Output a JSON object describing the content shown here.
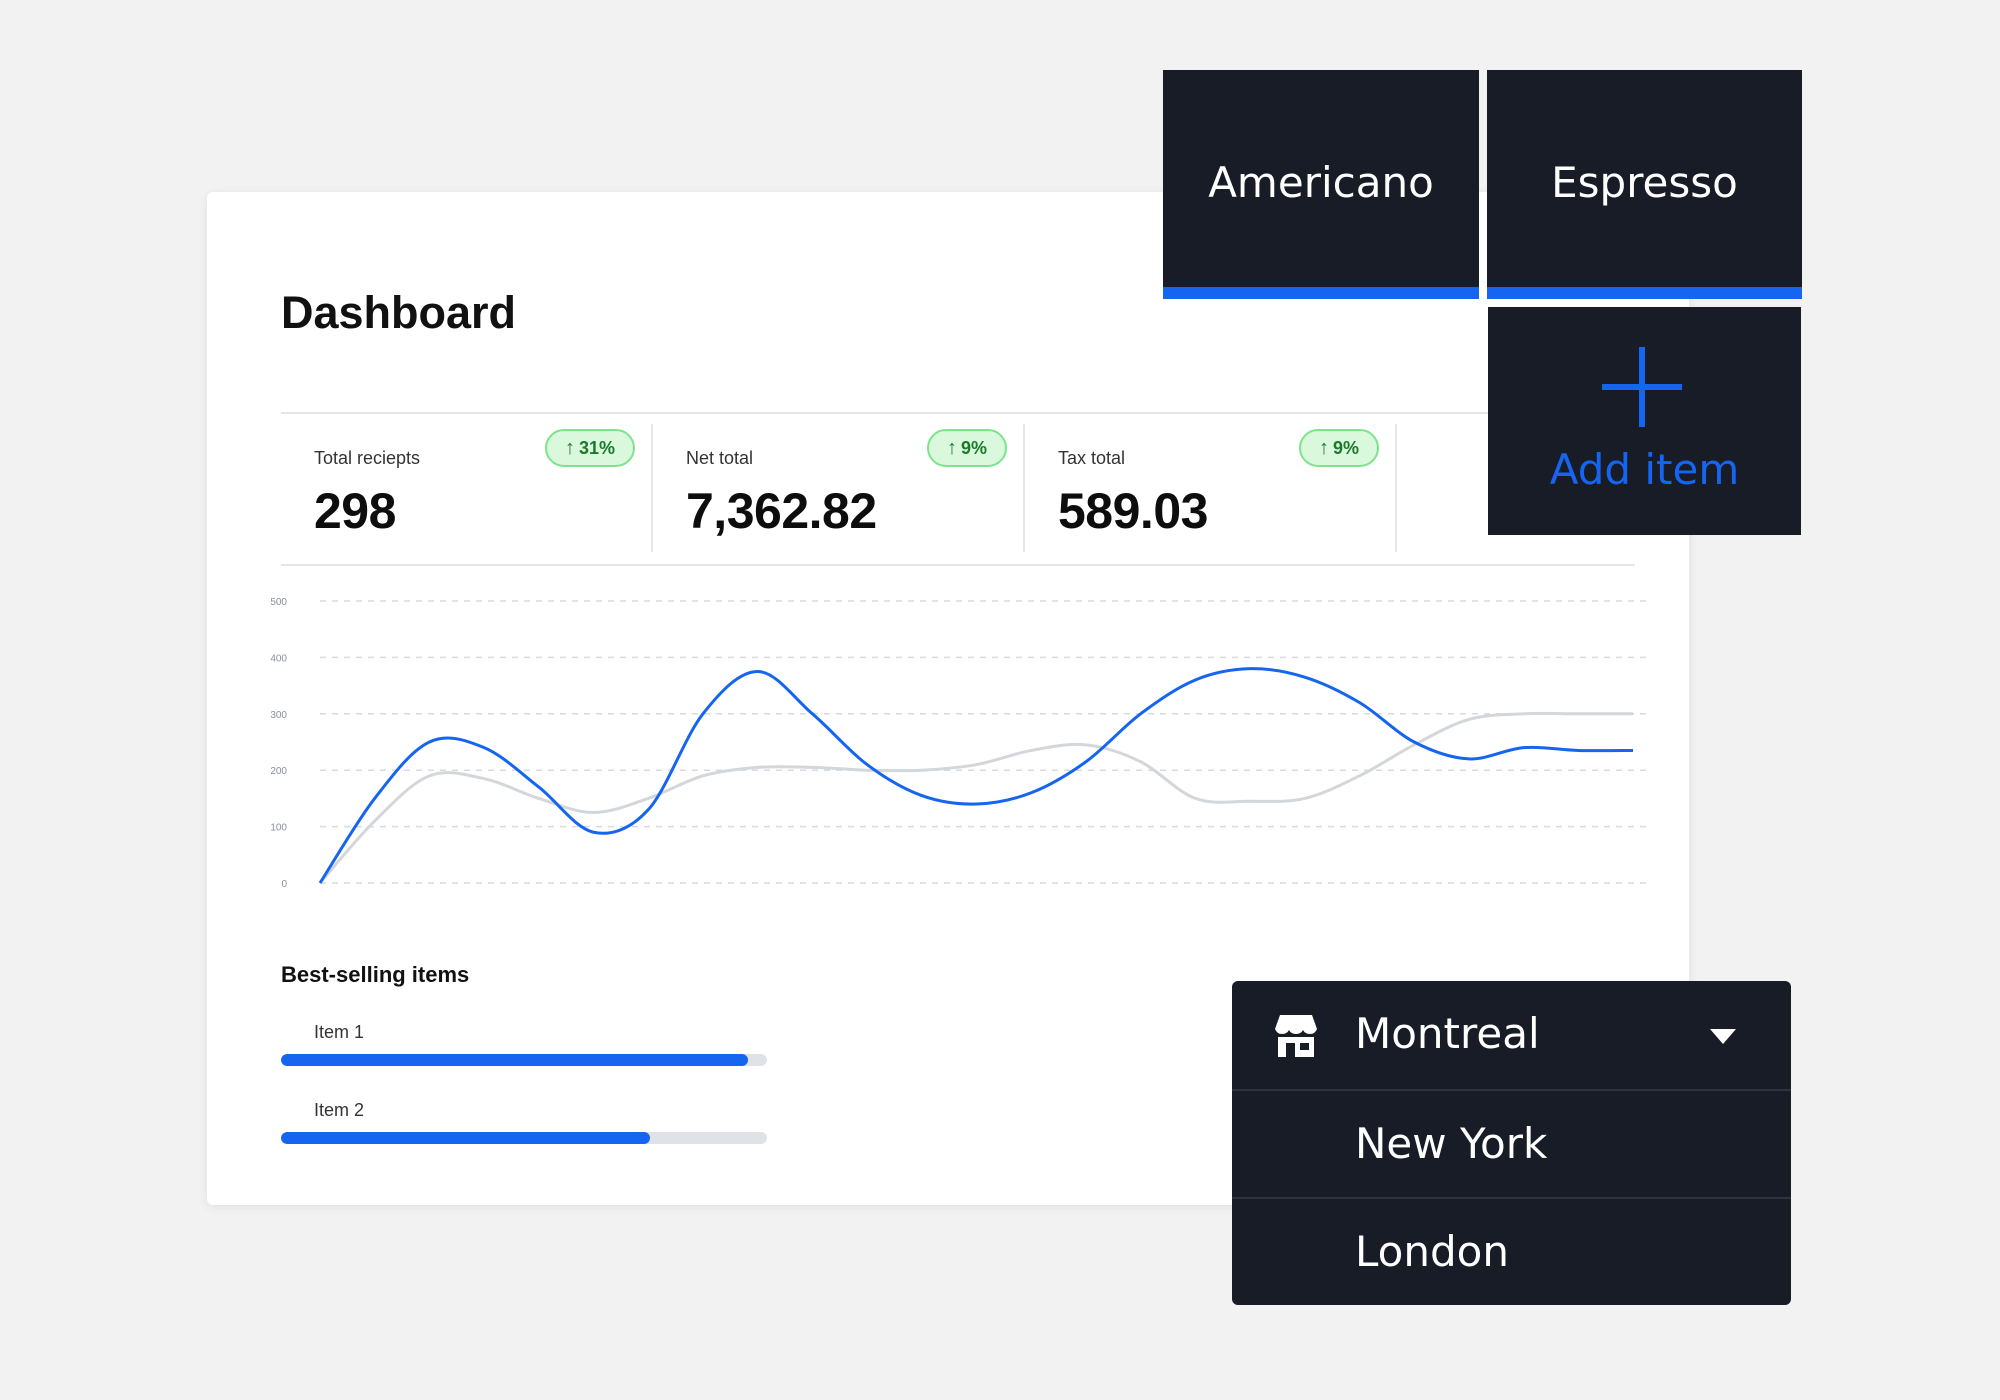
{
  "dashboard": {
    "title": "Dashboard",
    "stats": [
      {
        "label": "Total reciepts",
        "value": "298",
        "change": "31%"
      },
      {
        "label": "Net total",
        "value": "7,362.82",
        "change": "9%"
      },
      {
        "label": "Tax total",
        "value": "589.03",
        "change": "9%"
      }
    ],
    "best_selling": {
      "title": "Best-selling items",
      "items": [
        {
          "label": "Item 1",
          "fraction": 0.96
        },
        {
          "label": "Item 2",
          "fraction": 0.76
        }
      ]
    }
  },
  "chart_data": {
    "type": "line",
    "x": [
      0,
      1,
      2,
      3,
      4,
      5,
      6,
      7,
      8,
      9,
      10,
      11,
      12,
      13,
      14,
      15,
      16,
      17,
      18,
      19,
      20,
      21,
      22,
      23,
      24
    ],
    "ylim": [
      0,
      500
    ],
    "yticks": [
      0,
      100,
      200,
      300,
      400,
      500
    ],
    "grid": true,
    "series": [
      {
        "color": "#1565f0",
        "values": [
          0,
          150,
          250,
          240,
          170,
          90,
          130,
          300,
          375,
          300,
          210,
          155,
          140,
          160,
          215,
          300,
          360,
          380,
          365,
          320,
          250,
          220,
          240,
          235,
          235
        ]
      },
      {
        "color": "#d3d6da",
        "values": [
          0,
          110,
          190,
          185,
          150,
          125,
          150,
          190,
          205,
          205,
          200,
          200,
          210,
          235,
          245,
          215,
          150,
          145,
          150,
          190,
          245,
          290,
          300,
          300,
          300
        ]
      }
    ]
  },
  "tiles": [
    {
      "label": "Americano"
    },
    {
      "label": "Espresso"
    }
  ],
  "add_item": {
    "label": "Add item"
  },
  "location_dropdown": {
    "selected": "Montreal",
    "options": [
      "New York",
      "London"
    ]
  },
  "colors": {
    "accent": "#1565f0",
    "dark_panel": "#181c26",
    "badge_bg": "#d9f8dc",
    "badge_text": "#1b7a2a"
  }
}
